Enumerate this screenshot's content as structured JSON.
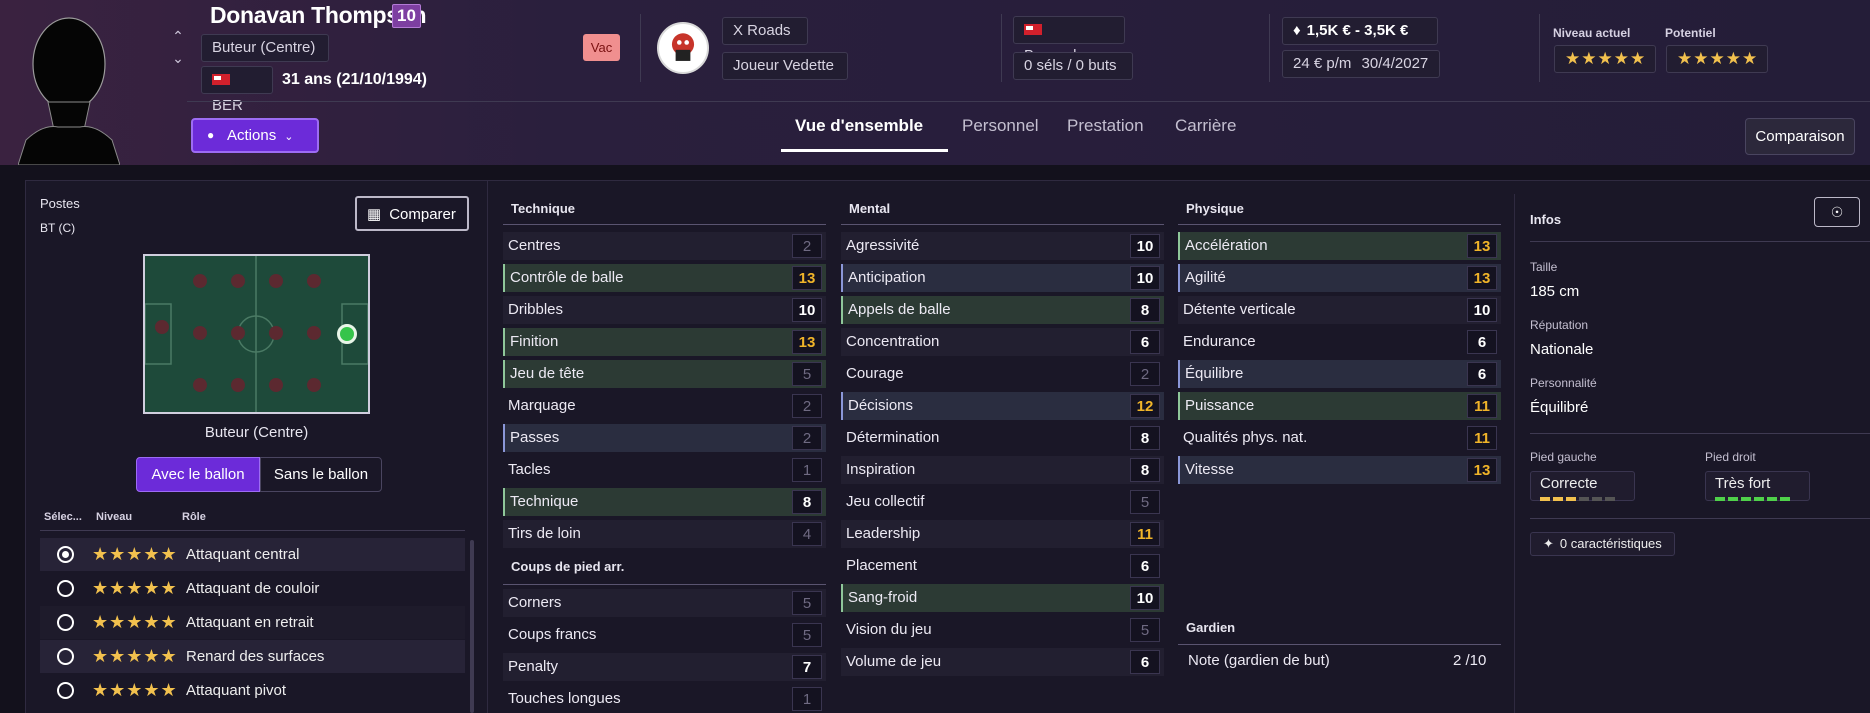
{
  "player": {
    "name": "Donavan Thompson",
    "number": "10",
    "position": "Buteur (Centre)",
    "nationality_code": "BER",
    "age": "31 ans (21/10/1994)",
    "status_badge": "Vac"
  },
  "club": {
    "name": "X Roads",
    "status": "Joueur Vedette"
  },
  "nation": {
    "name": "Bermudes",
    "caps": "0 séls / 0 buts"
  },
  "contract": {
    "value": "1,5K € - 3,5K €",
    "wage": "24 € p/m",
    "expiry": "30/4/2027"
  },
  "ability": {
    "current_label": "Niveau actuel",
    "potential_label": "Potentiel",
    "current_stars": "★★★★★",
    "potential_stars": "★★★★★"
  },
  "actions_label": "Actions",
  "tabs": [
    "Vue d'ensemble",
    "Personnel",
    "Prestation",
    "Carrière"
  ],
  "comparison_label": "Comparaison",
  "left": {
    "postes_label": "Postes",
    "postes_value": "BT (C)",
    "compare_label": "Comparer",
    "pitch_position": "Buteur (Centre)",
    "toggle_with": "Avec le ballon",
    "toggle_without": "Sans le ballon",
    "role_headers": [
      "Sélec...",
      "Niveau",
      "Rôle"
    ],
    "roles": [
      {
        "stars": "★★★★★",
        "name": "Attaquant central",
        "selected": true
      },
      {
        "stars": "★★★★★",
        "name": "Attaquant de couloir"
      },
      {
        "stars": "★★★★★",
        "name": "Attaquant en retrait"
      },
      {
        "stars": "★★★★★",
        "name": "Renard des surfaces"
      },
      {
        "stars": "★★★★★",
        "name": "Attaquant pivot"
      }
    ]
  },
  "attributes": {
    "technique_title": "Technique",
    "technique": [
      {
        "n": "Centres",
        "v": "2"
      },
      {
        "n": "Contrôle de balle",
        "v": "13"
      },
      {
        "n": "Dribbles",
        "v": "10"
      },
      {
        "n": "Finition",
        "v": "13"
      },
      {
        "n": "Jeu de tête",
        "v": "5"
      },
      {
        "n": "Marquage",
        "v": "2"
      },
      {
        "n": "Passes",
        "v": "2"
      },
      {
        "n": "Tacles",
        "v": "1"
      },
      {
        "n": "Technique",
        "v": "8"
      },
      {
        "n": "Tirs de loin",
        "v": "4"
      }
    ],
    "setpieces_title": "Coups de pied arr.",
    "setpieces": [
      {
        "n": "Corners",
        "v": "5"
      },
      {
        "n": "Coups francs",
        "v": "5"
      },
      {
        "n": "Penalty",
        "v": "7"
      },
      {
        "n": "Touches longues",
        "v": "1"
      }
    ],
    "mental_title": "Mental",
    "mental": [
      {
        "n": "Agressivité",
        "v": "10"
      },
      {
        "n": "Anticipation",
        "v": "10"
      },
      {
        "n": "Appels de balle",
        "v": "8"
      },
      {
        "n": "Concentration",
        "v": "6"
      },
      {
        "n": "Courage",
        "v": "2"
      },
      {
        "n": "Décisions",
        "v": "12"
      },
      {
        "n": "Détermination",
        "v": "8"
      },
      {
        "n": "Inspiration",
        "v": "8"
      },
      {
        "n": "Jeu collectif",
        "v": "5"
      },
      {
        "n": "Leadership",
        "v": "11"
      },
      {
        "n": "Placement",
        "v": "6"
      },
      {
        "n": "Sang-froid",
        "v": "10"
      },
      {
        "n": "Vision du jeu",
        "v": "5"
      },
      {
        "n": "Volume de jeu",
        "v": "6"
      }
    ],
    "physical_title": "Physique",
    "physical": [
      {
        "n": "Accélération",
        "v": "13"
      },
      {
        "n": "Agilité",
        "v": "13"
      },
      {
        "n": "Détente verticale",
        "v": "10"
      },
      {
        "n": "Endurance",
        "v": "6"
      },
      {
        "n": "Équilibre",
        "v": "6"
      },
      {
        "n": "Puissance",
        "v": "11"
      },
      {
        "n": "Qualités phys. nat.",
        "v": "11"
      },
      {
        "n": "Vitesse",
        "v": "13"
      }
    ],
    "gk_title": "Gardien",
    "gk_label": "Note (gardien de but)",
    "gk_value": "2 /10"
  },
  "info": {
    "title": "Infos",
    "height_label": "Taille",
    "height": "185 cm",
    "rep_label": "Réputation",
    "rep": "Nationale",
    "pers_label": "Personnalité",
    "pers": "Équilibré",
    "lfoot_label": "Pied gauche",
    "lfoot": "Correcte",
    "rfoot_label": "Pied droit",
    "rfoot": "Très fort",
    "traits": "0 caractéristiques"
  }
}
